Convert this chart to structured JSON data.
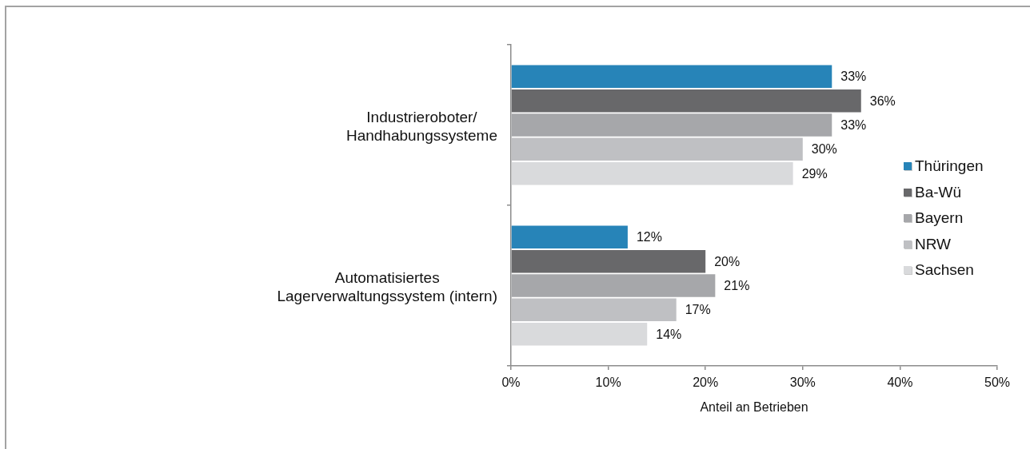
{
  "chart_data": {
    "type": "bar",
    "orientation": "horizontal",
    "categories": [
      "Industrieroboter/ Handhabungssysteme",
      "Automatisiertes Lagerverwaltungssystem (intern)"
    ],
    "series": [
      {
        "name": "Thüringen",
        "color": "#2784b8",
        "values": [
          33,
          12
        ],
        "value_labels": [
          "33%",
          "12%"
        ]
      },
      {
        "name": "Ba-Wü",
        "color": "#68686a",
        "values": [
          36,
          20
        ],
        "value_labels": [
          "36%",
          "20%"
        ]
      },
      {
        "name": "Bayern",
        "color": "#a6a7aa",
        "values": [
          33,
          21
        ],
        "value_labels": [
          "33%",
          "21%"
        ]
      },
      {
        "name": "NRW",
        "color": "#bfc0c3",
        "values": [
          30,
          17
        ],
        "value_labels": [
          "30%",
          "17%"
        ]
      },
      {
        "name": "Sachsen",
        "color": "#d9dadc",
        "values": [
          29,
          14
        ],
        "value_labels": [
          "29%",
          "14%"
        ]
      }
    ],
    "xlabel": "Anteil an Betrieben",
    "xlim": [
      0,
      50
    ],
    "xticks": [
      {
        "value": 0,
        "label": "0%"
      },
      {
        "value": 10,
        "label": "10%"
      },
      {
        "value": 20,
        "label": "20%"
      },
      {
        "value": 30,
        "label": "30%"
      },
      {
        "value": 40,
        "label": "40%"
      },
      {
        "value": 50,
        "label": "50%"
      }
    ],
    "legend": "right"
  }
}
